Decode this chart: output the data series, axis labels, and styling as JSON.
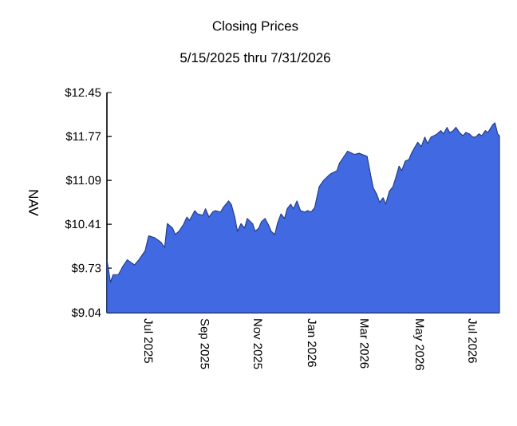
{
  "chart_data": {
    "type": "area",
    "title": "Closing Prices",
    "subtitle": "5/15/2025 thru 7/31/2026",
    "ylabel": "NAV",
    "x": [
      "2025-05-15",
      "2025-05-19",
      "2025-05-22",
      "2025-05-28",
      "2025-06-02",
      "2025-06-07",
      "2025-06-15",
      "2025-06-20",
      "2025-06-27",
      "2025-07-01",
      "2025-07-08",
      "2025-07-15",
      "2025-07-19",
      "2025-07-22",
      "2025-07-28",
      "2025-07-31",
      "2025-08-04",
      "2025-08-09",
      "2025-08-13",
      "2025-08-16",
      "2025-08-22",
      "2025-08-25",
      "2025-08-31",
      "2025-09-03",
      "2025-09-07",
      "2025-09-11",
      "2025-09-14",
      "2025-09-20",
      "2025-09-23",
      "2025-09-29",
      "2025-10-02",
      "2025-10-06",
      "2025-10-09",
      "2025-10-13",
      "2025-10-17",
      "2025-10-20",
      "2025-10-26",
      "2025-10-29",
      "2025-11-02",
      "2025-11-05",
      "2025-11-09",
      "2025-11-13",
      "2025-11-16",
      "2025-11-20",
      "2025-11-23",
      "2025-11-27",
      "2025-12-01",
      "2025-12-04",
      "2025-12-08",
      "2025-12-11",
      "2025-12-15",
      "2025-12-19",
      "2025-12-24",
      "2025-12-27",
      "2025-12-31",
      "2026-01-04",
      "2026-01-09",
      "2026-01-14",
      "2026-01-20",
      "2026-01-23",
      "2026-01-29",
      "2026-02-01",
      "2026-02-05",
      "2026-02-10",
      "2026-02-18",
      "2026-02-23",
      "2026-03-04",
      "2026-03-08",
      "2026-03-11",
      "2026-03-15",
      "2026-03-18",
      "2026-03-22",
      "2026-03-25",
      "2026-03-29",
      "2026-04-02",
      "2026-04-05",
      "2026-04-09",
      "2026-04-12",
      "2026-04-16",
      "2026-04-20",
      "2026-04-23",
      "2026-04-27",
      "2026-04-30",
      "2026-05-04",
      "2026-05-08",
      "2026-05-11",
      "2026-05-15",
      "2026-05-18",
      "2026-05-22",
      "2026-05-26",
      "2026-05-29",
      "2026-06-02",
      "2026-06-05",
      "2026-06-09",
      "2026-06-12",
      "2026-06-16",
      "2026-06-20",
      "2026-06-23",
      "2026-06-27",
      "2026-07-01",
      "2026-07-04",
      "2026-07-08",
      "2026-07-11",
      "2026-07-15",
      "2026-07-18",
      "2026-07-24",
      "2026-07-26",
      "2026-07-29",
      "2026-07-31"
    ],
    "series": [
      {
        "color": "#4169e1",
        "values": [
          9.86,
          9.51,
          9.63,
          9.63,
          9.76,
          9.86,
          9.78,
          9.86,
          10.0,
          10.23,
          10.2,
          10.13,
          10.05,
          10.42,
          10.35,
          10.25,
          10.3,
          10.4,
          10.52,
          10.47,
          10.62,
          10.57,
          10.55,
          10.65,
          10.52,
          10.6,
          10.62,
          10.6,
          10.67,
          10.77,
          10.72,
          10.52,
          10.3,
          10.42,
          10.35,
          10.5,
          10.42,
          10.3,
          10.35,
          10.45,
          10.5,
          10.4,
          10.3,
          10.25,
          10.42,
          10.57,
          10.5,
          10.65,
          10.72,
          10.65,
          10.77,
          10.62,
          10.6,
          10.62,
          10.6,
          10.67,
          10.99,
          11.09,
          11.17,
          11.2,
          11.24,
          11.36,
          11.44,
          11.54,
          11.49,
          11.51,
          11.46,
          11.17,
          10.97,
          10.87,
          10.75,
          10.82,
          10.72,
          10.92,
          10.99,
          11.12,
          11.31,
          11.24,
          11.39,
          11.41,
          11.51,
          11.61,
          11.68,
          11.61,
          11.76,
          11.66,
          11.76,
          11.78,
          11.81,
          11.86,
          11.81,
          11.91,
          11.83,
          11.86,
          11.91,
          11.83,
          11.78,
          11.83,
          11.81,
          11.76,
          11.76,
          11.81,
          11.78,
          11.86,
          11.83,
          11.96,
          11.98,
          11.81,
          11.78
        ]
      }
    ],
    "xlim": [
      "2025-05-15",
      "2026-07-31"
    ],
    "xticks": [
      {
        "value": "2025-07-01",
        "label": "Jul  2025"
      },
      {
        "value": "2025-09-01",
        "label": "Sep  2025"
      },
      {
        "value": "2025-11-01",
        "label": "Nov  2025"
      },
      {
        "value": "2026-01-01",
        "label": "Jan  2026"
      },
      {
        "value": "2026-03-01",
        "label": "Mar  2026"
      },
      {
        "value": "2026-05-01",
        "label": "May  2026"
      },
      {
        "value": "2026-07-01",
        "label": "Jul  2026"
      }
    ],
    "ylim": [
      9.04,
      12.45
    ],
    "yticks": [
      {
        "value": 9.04,
        "label": "$9.04"
      },
      {
        "value": 9.73,
        "label": "$9.73"
      },
      {
        "value": 10.41,
        "label": "$10.41"
      },
      {
        "value": 11.09,
        "label": "$11.09"
      },
      {
        "value": 11.77,
        "label": "$11.77"
      },
      {
        "value": 12.45,
        "label": "$12.45"
      }
    ],
    "line_style": "solid"
  }
}
